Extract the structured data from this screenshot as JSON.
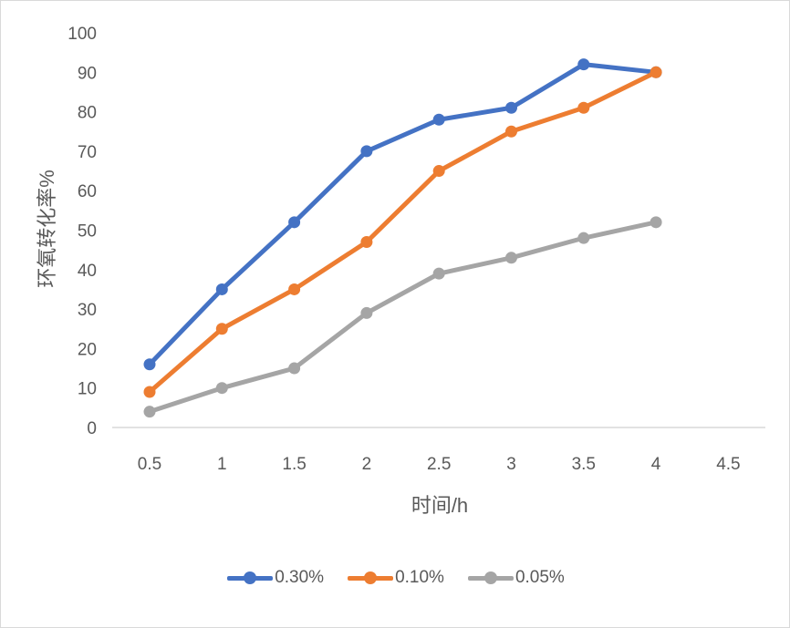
{
  "chart_data": {
    "type": "line",
    "x": [
      0.5,
      1,
      1.5,
      2,
      2.5,
      3,
      3.5,
      4
    ],
    "x_ticks": [
      "0.5",
      "1",
      "1.5",
      "2",
      "2.5",
      "3",
      "3.5",
      "4",
      "4.5"
    ],
    "xlabel": "时间/h",
    "ylabel": "环氧转化率%",
    "ylim": [
      0,
      100
    ],
    "y_ticks": [
      "0",
      "10",
      "20",
      "30",
      "40",
      "50",
      "60",
      "70",
      "80",
      "90",
      "100"
    ],
    "grid": false,
    "legend_position": "bottom",
    "series": [
      {
        "name": "0.30%",
        "color": "#4472c4",
        "values": [
          16,
          35,
          52,
          70,
          78,
          81,
          92,
          90
        ]
      },
      {
        "name": "0.10%",
        "color": "#ed7d31",
        "values": [
          9,
          25,
          35,
          47,
          65,
          75,
          81,
          90
        ]
      },
      {
        "name": "0.05%",
        "color": "#a5a5a5",
        "values": [
          4,
          10,
          15,
          29,
          39,
          43,
          48,
          52
        ]
      }
    ]
  }
}
